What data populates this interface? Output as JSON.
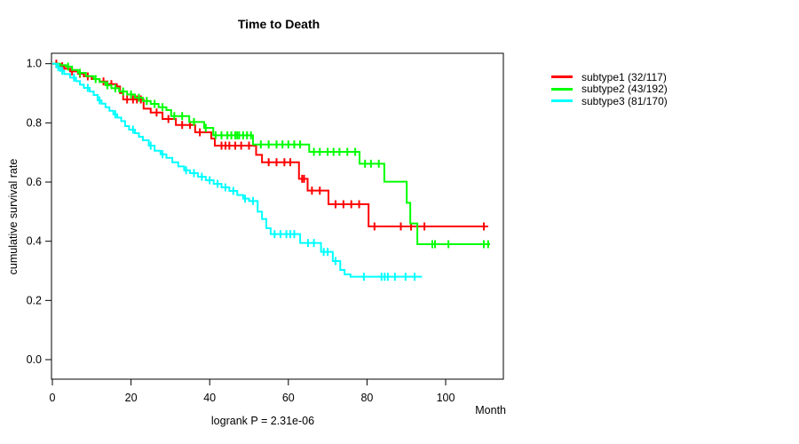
{
  "chart_data": {
    "type": "line",
    "variant": "kaplan-meier-step-curves",
    "title": "Time to Death",
    "xlabel": "Month",
    "ylabel": "cumulative survival rate",
    "annotation": "logrank P = 2.31e-06",
    "xlim": [
      0,
      115
    ],
    "ylim": [
      0,
      1
    ],
    "grid": false,
    "legend_position": "right-outside",
    "x_ticks": [
      0,
      20,
      40,
      60,
      80,
      100
    ],
    "y_ticks": [
      "0.0",
      "0.2",
      "0.4",
      "0.6",
      "0.8",
      "1.0"
    ],
    "series": [
      {
        "name": "subtype1",
        "label": "subtype1 (32/117)",
        "color": "#ff0000",
        "events": 32,
        "n": 117,
        "end": 110.8,
        "steps": [
          [
            0,
            1.0
          ],
          [
            1.5,
            0.991
          ],
          [
            3,
            0.983
          ],
          [
            4.5,
            0.974
          ],
          [
            6.5,
            0.966
          ],
          [
            8,
            0.957
          ],
          [
            10,
            0.948
          ],
          [
            12,
            0.94
          ],
          [
            14,
            0.931
          ],
          [
            16.4,
            0.923
          ],
          [
            17.2,
            0.901
          ],
          [
            18,
            0.879
          ],
          [
            23.2,
            0.848
          ],
          [
            25,
            0.835
          ],
          [
            28,
            0.813
          ],
          [
            31.4,
            0.793
          ],
          [
            36.3,
            0.768
          ],
          [
            40.4,
            0.747
          ],
          [
            41.3,
            0.723
          ],
          [
            51.8,
            0.692
          ],
          [
            53.3,
            0.667
          ],
          [
            62.7,
            0.611
          ],
          [
            64.9,
            0.571
          ],
          [
            70.2,
            0.525
          ],
          [
            80.4,
            0.45
          ]
        ],
        "censors": [
          1,
          2.5,
          5,
          7,
          9,
          13,
          15,
          19,
          20.5,
          21.5,
          22.5,
          26.5,
          29.5,
          33,
          35,
          37.5,
          43,
          44,
          45,
          46.5,
          48,
          50,
          55,
          57,
          59,
          60.5,
          63.5,
          64,
          66,
          68,
          72,
          74,
          76,
          78,
          81.9,
          88.6,
          91.2,
          94.6,
          109.7
        ]
      },
      {
        "name": "subtype2",
        "label": "subtype2 (43/192)",
        "color": "#00ff00",
        "events": 43,
        "n": 192,
        "end": 111.3,
        "steps": [
          [
            0,
            1.0
          ],
          [
            2,
            0.995
          ],
          [
            3.5,
            0.99
          ],
          [
            5,
            0.979
          ],
          [
            6.5,
            0.969
          ],
          [
            8.5,
            0.958
          ],
          [
            10.5,
            0.948
          ],
          [
            12,
            0.938
          ],
          [
            13.5,
            0.927
          ],
          [
            15,
            0.917
          ],
          [
            17,
            0.906
          ],
          [
            19,
            0.896
          ],
          [
            21,
            0.885
          ],
          [
            23,
            0.874
          ],
          [
            25,
            0.864
          ],
          [
            27,
            0.853
          ],
          [
            29,
            0.843
          ],
          [
            30.2,
            0.823
          ],
          [
            34.8,
            0.803
          ],
          [
            38.6,
            0.783
          ],
          [
            40.9,
            0.758
          ],
          [
            51,
            0.727
          ],
          [
            65.3,
            0.702
          ],
          [
            78.1,
            0.662
          ],
          [
            84.4,
            0.601
          ],
          [
            90.1,
            0.53
          ],
          [
            91,
            0.46
          ],
          [
            92.8,
            0.39
          ]
        ],
        "censors": [
          4,
          7,
          11,
          14,
          16,
          18,
          20,
          22,
          24,
          26,
          28,
          31,
          33,
          36,
          39,
          41.5,
          43,
          44.5,
          45.5,
          46.5,
          47,
          47.5,
          48.5,
          49.5,
          50.5,
          53,
          55,
          57,
          58.5,
          60,
          61.5,
          63,
          66.5,
          68,
          70,
          71.5,
          73,
          75,
          77,
          79.5,
          81,
          83,
          96.6,
          97.3,
          100.7,
          109.7,
          110.8
        ]
      },
      {
        "name": "subtype3",
        "label": "subtype3 (81/170)",
        "color": "#00ffff",
        "events": 81,
        "n": 170,
        "end": 94,
        "steps": [
          [
            0,
            1.0
          ],
          [
            1,
            0.988
          ],
          [
            2,
            0.976
          ],
          [
            3,
            0.965
          ],
          [
            4.5,
            0.953
          ],
          [
            6,
            0.941
          ],
          [
            7,
            0.929
          ],
          [
            8,
            0.918
          ],
          [
            9.5,
            0.906
          ],
          [
            10.5,
            0.894
          ],
          [
            11.5,
            0.876
          ],
          [
            12.5,
            0.865
          ],
          [
            13.5,
            0.853
          ],
          [
            14.5,
            0.841
          ],
          [
            15.5,
            0.829
          ],
          [
            16.5,
            0.818
          ],
          [
            17.5,
            0.806
          ],
          [
            18.5,
            0.789
          ],
          [
            19.5,
            0.777
          ],
          [
            21,
            0.765
          ],
          [
            22,
            0.753
          ],
          [
            23,
            0.741
          ],
          [
            24.5,
            0.723
          ],
          [
            26,
            0.706
          ],
          [
            27.5,
            0.694
          ],
          [
            29,
            0.682
          ],
          [
            30.5,
            0.667
          ],
          [
            32,
            0.653
          ],
          [
            33.5,
            0.64
          ],
          [
            35,
            0.63
          ],
          [
            37,
            0.618
          ],
          [
            39,
            0.606
          ],
          [
            41,
            0.594
          ],
          [
            43,
            0.582
          ],
          [
            45,
            0.57
          ],
          [
            47,
            0.556
          ],
          [
            48.5,
            0.544
          ],
          [
            50,
            0.536
          ],
          [
            52.2,
            0.5
          ],
          [
            53.3,
            0.475
          ],
          [
            54.4,
            0.444
          ],
          [
            55.5,
            0.424
          ],
          [
            63,
            0.394
          ],
          [
            68.3,
            0.364
          ],
          [
            71.3,
            0.333
          ],
          [
            73.2,
            0.303
          ],
          [
            74.3,
            0.288
          ],
          [
            75.8,
            0.28
          ]
        ],
        "censors": [
          1.5,
          2.5,
          5.5,
          9,
          12,
          16,
          20.5,
          25,
          28,
          34,
          36,
          38,
          40,
          42,
          44,
          46,
          49,
          51,
          56.5,
          58,
          59.5,
          60.5,
          61.5,
          65,
          66.5,
          69,
          70,
          72,
          79.2,
          83.7,
          84.5,
          85.3,
          87.1,
          89.8,
          92.1
        ]
      }
    ]
  }
}
